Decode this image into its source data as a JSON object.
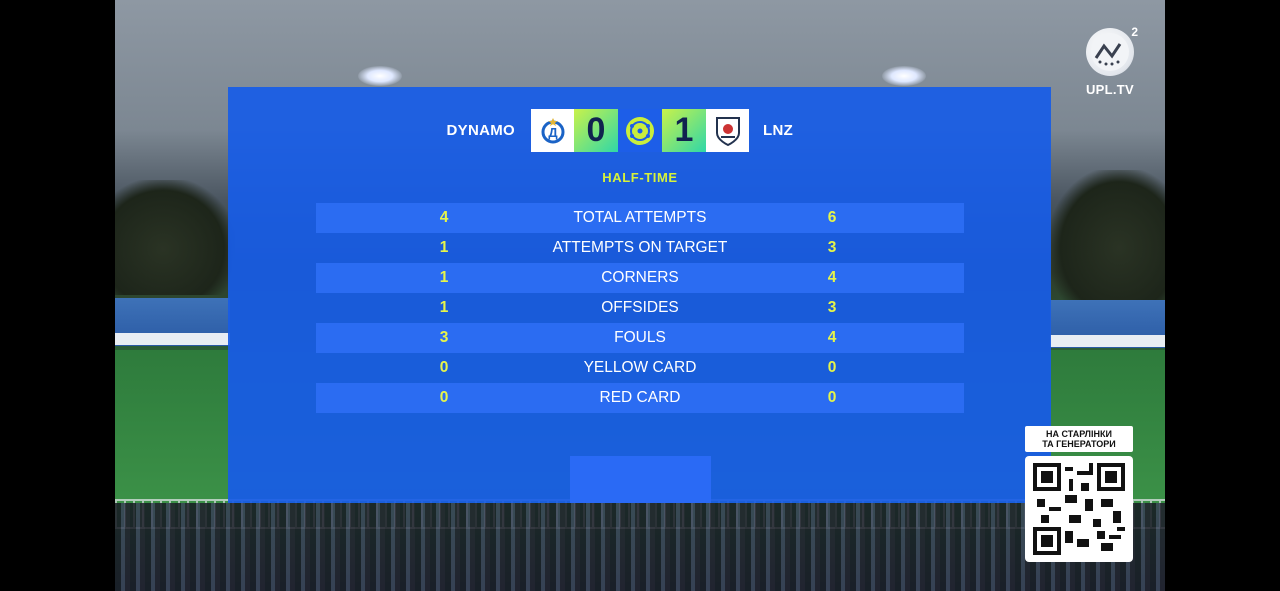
{
  "match": {
    "home": {
      "name": "DYNAMO",
      "score": "0"
    },
    "away": {
      "name": "LNZ",
      "score": "1"
    },
    "period": "HALF-TIME"
  },
  "stats": [
    {
      "home": "4",
      "label": "TOTAL ATTEMPTS",
      "away": "6"
    },
    {
      "home": "1",
      "label": "ATTEMPTS ON TARGET",
      "away": "3"
    },
    {
      "home": "1",
      "label": "CORNERS",
      "away": "4"
    },
    {
      "home": "1",
      "label": "OFFSIDES",
      "away": "3"
    },
    {
      "home": "3",
      "label": "FOULS",
      "away": "4"
    },
    {
      "home": "0",
      "label": "YELLOW CARD",
      "away": "0"
    },
    {
      "home": "0",
      "label": "RED CARD",
      "away": "0"
    }
  ],
  "broadcaster": {
    "name": "UPL.TV",
    "channel": "2"
  },
  "promo": {
    "line1": "НА  СТАРЛІНКИ",
    "line2": "ТА ГЕНЕРАТОРИ"
  },
  "colors": {
    "panel": "#185ce6",
    "row_shade": "#2b6cf2",
    "score_grad_start": "#c9f24a",
    "score_grad_end": "#2fd7a8",
    "period": "#d7f23a"
  }
}
